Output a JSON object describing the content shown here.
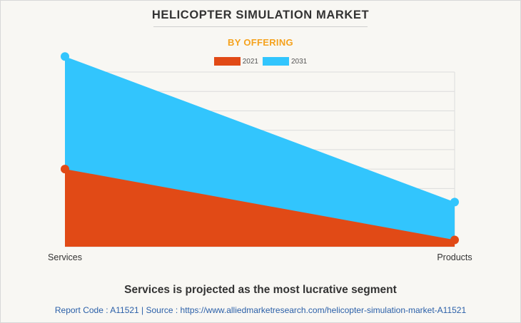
{
  "header": {
    "title": "HELICOPTER SIMULATION MARKET",
    "subtitle": "BY OFFERING"
  },
  "colors": {
    "series_2021": "#e14a16",
    "series_2031": "#32c5fd",
    "subtitle": "#f5a21d",
    "grid": "#dcdcdc",
    "footer_link": "#2a5fa8"
  },
  "chart_data": {
    "type": "area",
    "title": "HELICOPTER SIMULATION MARKET",
    "subtitle": "BY OFFERING",
    "categories": [
      "Services",
      "Products"
    ],
    "ylim": [
      0,
      9
    ],
    "grid": true,
    "legend_position": "top-center",
    "series": [
      {
        "name": "2031",
        "values": [
          9.8,
          2.3
        ],
        "color": "#32c5fd"
      },
      {
        "name": "2021",
        "values": [
          4.0,
          0.35
        ],
        "color": "#e14a16"
      }
    ]
  },
  "footer": {
    "headline": "Services is projected as the most lucrative segment",
    "source": "Report Code : A11521  |  Source : https://www.alliedmarketresearch.com/helicopter-simulation-market-A11521"
  }
}
